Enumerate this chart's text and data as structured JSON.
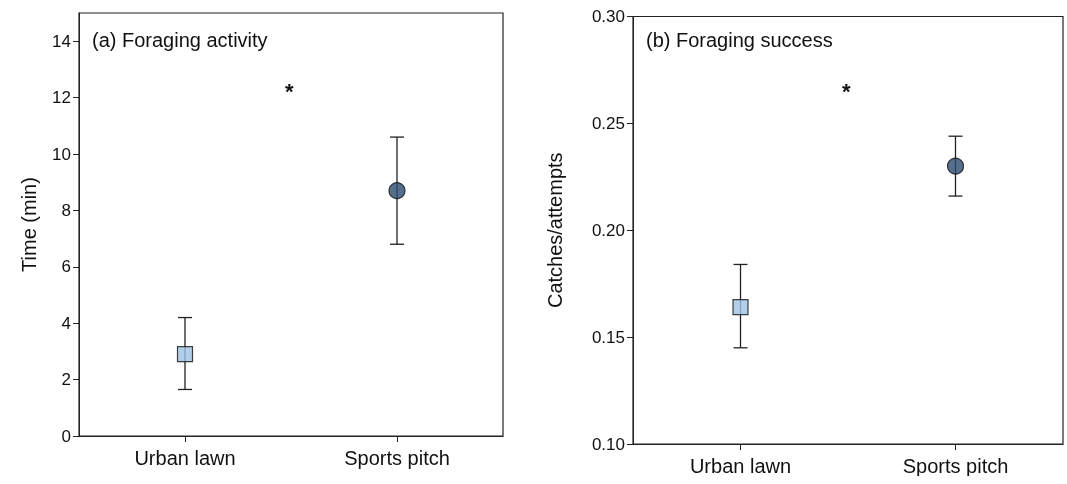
{
  "chart_data": [
    {
      "type": "scatter",
      "title": "(a) Foraging activity",
      "ylabel": "Time (min)",
      "categories": [
        "Urban lawn",
        "Sports pitch"
      ],
      "ylim": [
        0,
        15
      ],
      "yticks": [
        0,
        2,
        4,
        6,
        8,
        10,
        12,
        14
      ],
      "grid": false,
      "annotations": [
        "*"
      ],
      "series": [
        {
          "color": "#9dc3e6",
          "marker": "square",
          "values": [
            2.9,
            null
          ],
          "errors": [
            [
              1.65,
              4.2
            ],
            null
          ]
        },
        {
          "color": "#2b4a6f",
          "marker": "circle",
          "values": [
            null,
            8.7
          ],
          "errors": [
            null,
            [
              6.8,
              10.6
            ]
          ]
        }
      ]
    },
    {
      "type": "scatter",
      "title": "(b) Foraging success",
      "ylabel": "Catches/attempts",
      "categories": [
        "Urban lawn",
        "Sports pitch"
      ],
      "ylim": [
        0.1,
        0.3
      ],
      "yticks": [
        {
          "value": 0.1,
          "label": "0.10"
        },
        0.15,
        {
          "value": 0.2,
          "label": "0.20"
        },
        0.25,
        {
          "value": 0.3,
          "label": "0.30"
        }
      ],
      "grid": false,
      "annotations": [
        "*"
      ],
      "series": [
        {
          "color": "#9dc3e6",
          "marker": "square",
          "values": [
            0.164,
            null
          ],
          "errors": [
            [
              0.145,
              0.184
            ],
            null
          ]
        },
        {
          "color": "#2b4a6f",
          "marker": "circle",
          "values": [
            null,
            0.23
          ],
          "errors": [
            null,
            [
              0.216,
              0.244
            ]
          ]
        }
      ]
    }
  ]
}
